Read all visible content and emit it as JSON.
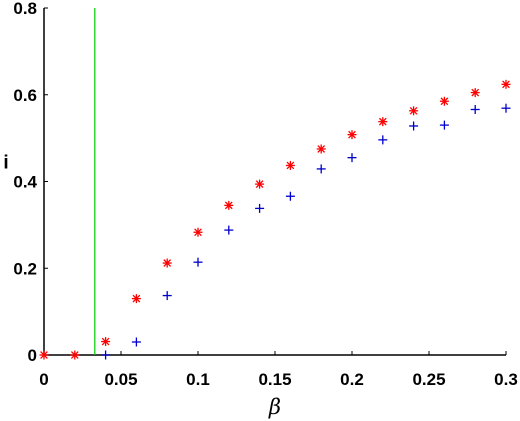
{
  "chart_data": {
    "type": "scatter",
    "xlabel": "β",
    "ylabel": "i",
    "xlim": [
      0,
      0.3
    ],
    "ylim": [
      0,
      0.8
    ],
    "x_ticks": [
      "0",
      "0.05",
      "0.1",
      "0.15",
      "0.2",
      "0.25",
      "0.3"
    ],
    "y_ticks": [
      "0",
      "0.2",
      "0.4",
      "0.6",
      "0.8"
    ],
    "grid": false,
    "threshold_line": {
      "x": 0.033,
      "color": "#00cc00"
    },
    "series": [
      {
        "marker": "asterisk",
        "color": "#ff0000",
        "x": [
          0,
          0.02,
          0.04,
          0.06,
          0.08,
          0.1,
          0.12,
          0.14,
          0.16,
          0.18,
          0.2,
          0.22,
          0.24,
          0.26,
          0.28,
          0.3
        ],
        "y": [
          0,
          0,
          0.031,
          0.13,
          0.212,
          0.283,
          0.345,
          0.394,
          0.437,
          0.475,
          0.508,
          0.538,
          0.563,
          0.585,
          0.605,
          0.624
        ]
      },
      {
        "marker": "plus",
        "color": "#0000cc",
        "x": [
          0.04,
          0.06,
          0.08,
          0.1,
          0.12,
          0.14,
          0.16,
          0.18,
          0.2,
          0.22,
          0.24,
          0.26,
          0.28,
          0.3
        ],
        "y": [
          0,
          0.03,
          0.137,
          0.214,
          0.288,
          0.338,
          0.366,
          0.429,
          0.455,
          0.496,
          0.528,
          0.53,
          0.566,
          0.569
        ]
      }
    ]
  }
}
